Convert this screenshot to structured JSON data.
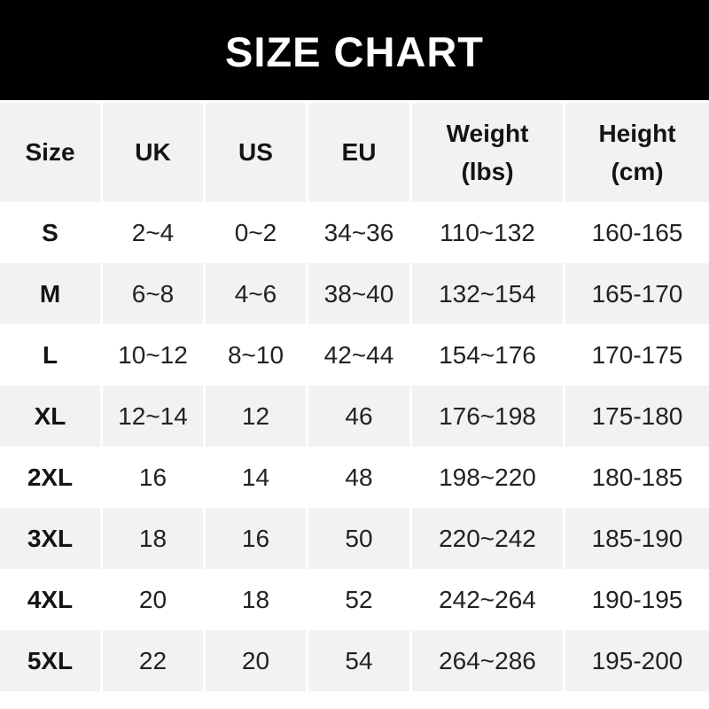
{
  "banner": {
    "title": "SIZE CHART"
  },
  "table_display": {
    "headers": [
      {
        "line1": "Size"
      },
      {
        "line1": "UK"
      },
      {
        "line1": "US"
      },
      {
        "line1": "EU"
      },
      {
        "line1": "Weight",
        "line2": "(lbs)"
      },
      {
        "line1": "Height",
        "line2": "(cm)"
      }
    ]
  },
  "chart_data": {
    "type": "table",
    "title": "SIZE CHART",
    "columns": [
      "Size",
      "UK",
      "US",
      "EU",
      "Weight (lbs)",
      "Height (cm)"
    ],
    "rows": [
      [
        "S",
        "2~4",
        "0~2",
        "34~36",
        "110~132",
        "160-165"
      ],
      [
        "M",
        "6~8",
        "4~6",
        "38~40",
        "132~154",
        "165-170"
      ],
      [
        "L",
        "10~12",
        "8~10",
        "42~44",
        "154~176",
        "170-175"
      ],
      [
        "XL",
        "12~14",
        "12",
        "46",
        "176~198",
        "175-180"
      ],
      [
        "2XL",
        "16",
        "14",
        "48",
        "198~220",
        "180-185"
      ],
      [
        "3XL",
        "18",
        "16",
        "50",
        "220~242",
        "185-190"
      ],
      [
        "4XL",
        "20",
        "18",
        "52",
        "242~264",
        "190-195"
      ],
      [
        "5XL",
        "22",
        "20",
        "54",
        "264~286",
        "195-200"
      ]
    ],
    "layout_hints": {
      "row_striping": "white / light-gray alternating, header gray",
      "column_gutter_color": "#ffffff"
    }
  },
  "colors": {
    "banner_bg": "#010101",
    "banner_text": "#ffffff",
    "stripe_bg": "#f2f2f2",
    "row_bg": "#ffffff",
    "text": "#222222",
    "bold_text": "#141414"
  }
}
